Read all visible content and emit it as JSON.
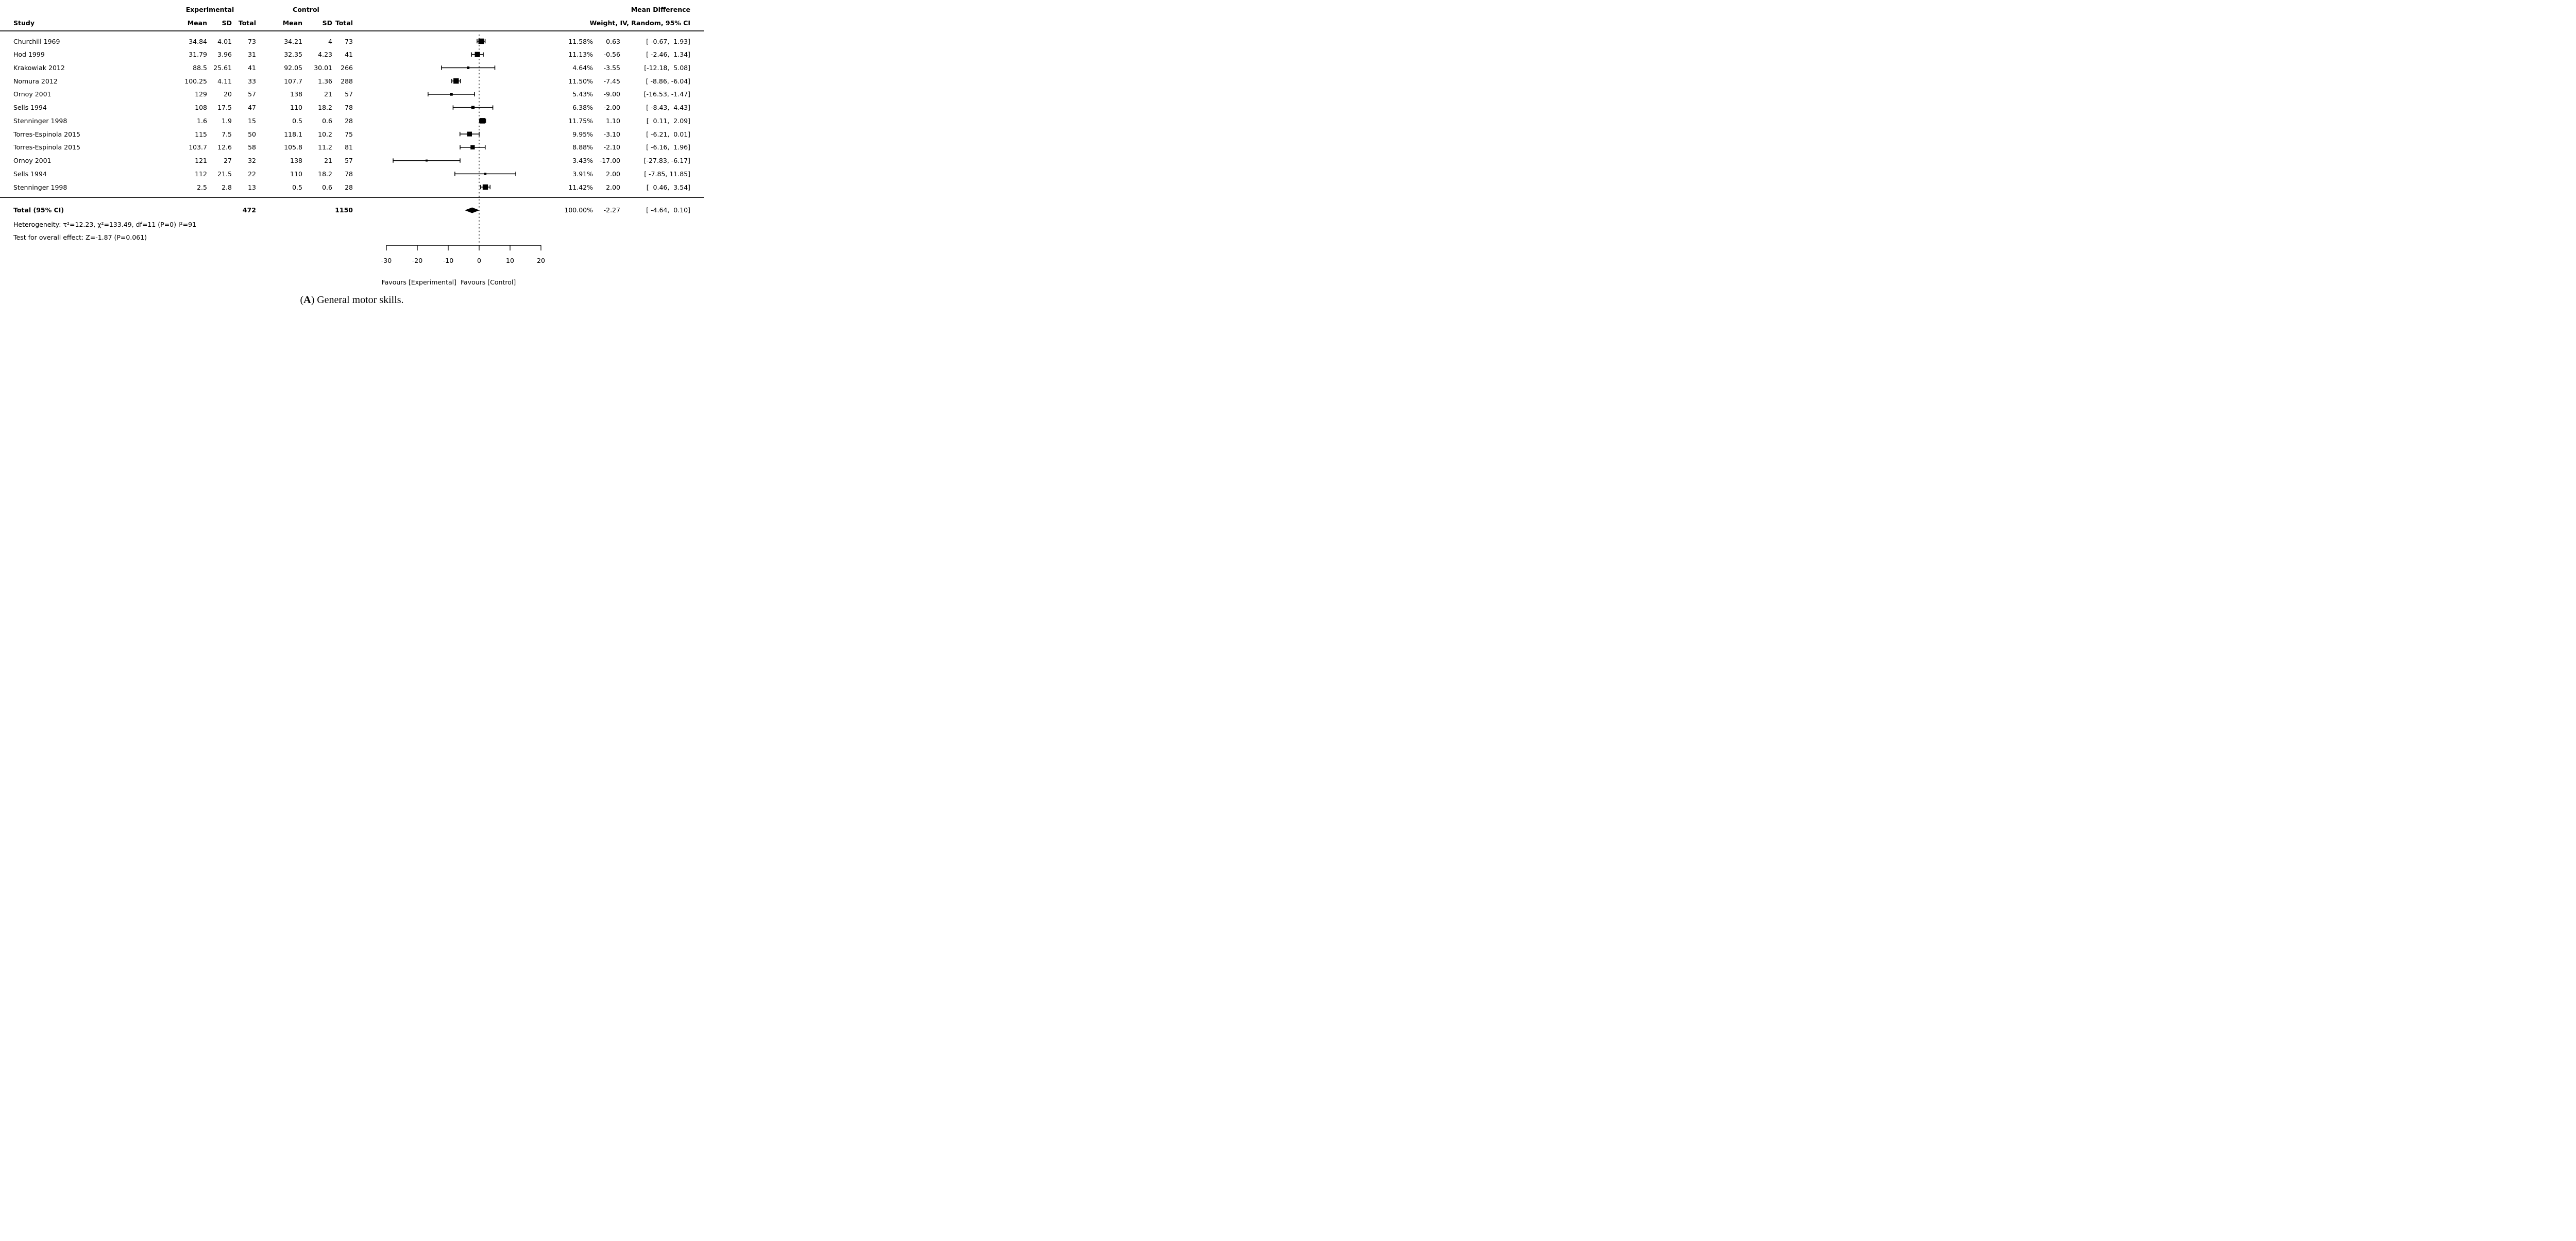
{
  "figure": {
    "headers": {
      "study": "Study",
      "experimental_group": "Experimental",
      "control_group": "Control",
      "mean": "Mean",
      "sd": "SD",
      "total": "Total",
      "effect_title": "Mean Difference",
      "effect_subtitle": "Weight, IV, Random, 95% CI"
    },
    "total_row": {
      "label": "Total (95% CI)",
      "exp_total": "472",
      "ctrl_total": "1150",
      "weight": "100.00%",
      "estimate_text": "-2.27",
      "ci_text": "[ -4.64,  0.10]"
    },
    "heterogeneity": "Heterogeneity: τ²=12.23, χ²=133.49, df=11 (P=0) I²=91",
    "overall_effect": "Test for overall effect: Z=-1.87 (P=0.061)",
    "favours_left": "Favours [Experimental]",
    "favours_right": "Favours [Control]",
    "caption": {
      "open": "(",
      "letter": "A",
      "rest": ") General motor skills."
    }
  },
  "chart_data": {
    "type": "scatter",
    "subtype": "forest_plot_mean_difference_random_effects",
    "title": "Mean Difference — Weight, IV, Random, 95% CI",
    "x_axis": {
      "range": [
        -30,
        20
      ],
      "ticks": [
        -30,
        -20,
        -10,
        0,
        10,
        20
      ],
      "tick_labels": [
        "-30",
        "-20",
        "-10",
        "0",
        "10",
        "20"
      ],
      "zero_line": 0
    },
    "legend": {
      "favours_left": "Favours [Experimental]",
      "favours_right": "Favours [Control]"
    },
    "studies": [
      {
        "study": "Churchill 1969",
        "exp_mean": "34.84",
        "exp_sd": "4.01",
        "exp_total": "73",
        "ctrl_mean": "34.21",
        "ctrl_sd": "4",
        "ctrl_total": "73",
        "weight": "11.58%",
        "weight_pct": 11.58,
        "estimate": 0.63,
        "ci_low": -0.67,
        "ci_high": 1.93,
        "estimate_text": "0.63",
        "ci_text": "[ -0.67,  1.93]"
      },
      {
        "study": "Hod 1999",
        "exp_mean": "31.79",
        "exp_sd": "3.96",
        "exp_total": "31",
        "ctrl_mean": "32.35",
        "ctrl_sd": "4.23",
        "ctrl_total": "41",
        "weight": "11.13%",
        "weight_pct": 11.13,
        "estimate": -0.56,
        "ci_low": -2.46,
        "ci_high": 1.34,
        "estimate_text": "-0.56",
        "ci_text": "[ -2.46,  1.34]"
      },
      {
        "study": "Krakowiak 2012",
        "exp_mean": "88.5",
        "exp_sd": "25.61",
        "exp_total": "41",
        "ctrl_mean": "92.05",
        "ctrl_sd": "30.01",
        "ctrl_total": "266",
        "weight": "4.64%",
        "weight_pct": 4.64,
        "estimate": -3.55,
        "ci_low": -12.18,
        "ci_high": 5.08,
        "estimate_text": "-3.55",
        "ci_text": "[-12.18,  5.08]"
      },
      {
        "study": "Nomura 2012",
        "exp_mean": "100.25",
        "exp_sd": "4.11",
        "exp_total": "33",
        "ctrl_mean": "107.7",
        "ctrl_sd": "1.36",
        "ctrl_total": "288",
        "weight": "11.50%",
        "weight_pct": 11.5,
        "estimate": -7.45,
        "ci_low": -8.86,
        "ci_high": -6.04,
        "estimate_text": "-7.45",
        "ci_text": "[ -8.86, -6.04]"
      },
      {
        "study": "Ornoy 2001",
        "exp_mean": "129",
        "exp_sd": "20",
        "exp_total": "57",
        "ctrl_mean": "138",
        "ctrl_sd": "21",
        "ctrl_total": "57",
        "weight": "5.43%",
        "weight_pct": 5.43,
        "estimate": -9.0,
        "ci_low": -16.53,
        "ci_high": -1.47,
        "estimate_text": "-9.00",
        "ci_text": "[-16.53, -1.47]"
      },
      {
        "study": "Sells 1994",
        "exp_mean": "108",
        "exp_sd": "17.5",
        "exp_total": "47",
        "ctrl_mean": "110",
        "ctrl_sd": "18.2",
        "ctrl_total": "78",
        "weight": "6.38%",
        "weight_pct": 6.38,
        "estimate": -2.0,
        "ci_low": -8.43,
        "ci_high": 4.43,
        "estimate_text": "-2.00",
        "ci_text": "[ -8.43,  4.43]"
      },
      {
        "study": "Stenninger 1998",
        "exp_mean": "1.6",
        "exp_sd": "1.9",
        "exp_total": "15",
        "ctrl_mean": "0.5",
        "ctrl_sd": "0.6",
        "ctrl_total": "28",
        "weight": "11.75%",
        "weight_pct": 11.75,
        "estimate": 1.1,
        "ci_low": 0.11,
        "ci_high": 2.09,
        "estimate_text": "1.10",
        "ci_text": "[  0.11,  2.09]"
      },
      {
        "study": "Torres-Espinola 2015",
        "exp_mean": "115",
        "exp_sd": "7.5",
        "exp_total": "50",
        "ctrl_mean": "118.1",
        "ctrl_sd": "10.2",
        "ctrl_total": "75",
        "weight": "9.95%",
        "weight_pct": 9.95,
        "estimate": -3.1,
        "ci_low": -6.21,
        "ci_high": 0.01,
        "estimate_text": "-3.10",
        "ci_text": "[ -6.21,  0.01]"
      },
      {
        "study": "Torres-Espinola 2015",
        "exp_mean": "103.7",
        "exp_sd": "12.6",
        "exp_total": "58",
        "ctrl_mean": "105.8",
        "ctrl_sd": "11.2",
        "ctrl_total": "81",
        "weight": "8.88%",
        "weight_pct": 8.88,
        "estimate": -2.1,
        "ci_low": -6.16,
        "ci_high": 1.96,
        "estimate_text": "-2.10",
        "ci_text": "[ -6.16,  1.96]"
      },
      {
        "study": "Ornoy 2001",
        "exp_mean": "121",
        "exp_sd": "27",
        "exp_total": "32",
        "ctrl_mean": "138",
        "ctrl_sd": "21",
        "ctrl_total": "57",
        "weight": "3.43%",
        "weight_pct": 3.43,
        "estimate": -17.0,
        "ci_low": -27.83,
        "ci_high": -6.17,
        "estimate_text": "-17.00",
        "ci_text": "[-27.83, -6.17]"
      },
      {
        "study": "Sells 1994",
        "exp_mean": "112",
        "exp_sd": "21.5",
        "exp_total": "22",
        "ctrl_mean": "110",
        "ctrl_sd": "18.2",
        "ctrl_total": "78",
        "weight": "3.91%",
        "weight_pct": 3.91,
        "estimate": 2.0,
        "ci_low": -7.85,
        "ci_high": 11.85,
        "estimate_text": "2.00",
        "ci_text": "[ -7.85, 11.85]"
      },
      {
        "study": "Stenninger 1998",
        "exp_mean": "2.5",
        "exp_sd": "2.8",
        "exp_total": "13",
        "ctrl_mean": "0.5",
        "ctrl_sd": "0.6",
        "ctrl_total": "28",
        "weight": "11.42%",
        "weight_pct": 11.42,
        "estimate": 2.0,
        "ci_low": 0.46,
        "ci_high": 3.54,
        "estimate_text": "2.00",
        "ci_text": "[  0.46,  3.54]"
      }
    ],
    "summary": {
      "label": "Total (95% CI)",
      "estimate": -2.27,
      "ci_low": -4.64,
      "ci_high": 0.1,
      "weight_pct": 100.0
    }
  }
}
